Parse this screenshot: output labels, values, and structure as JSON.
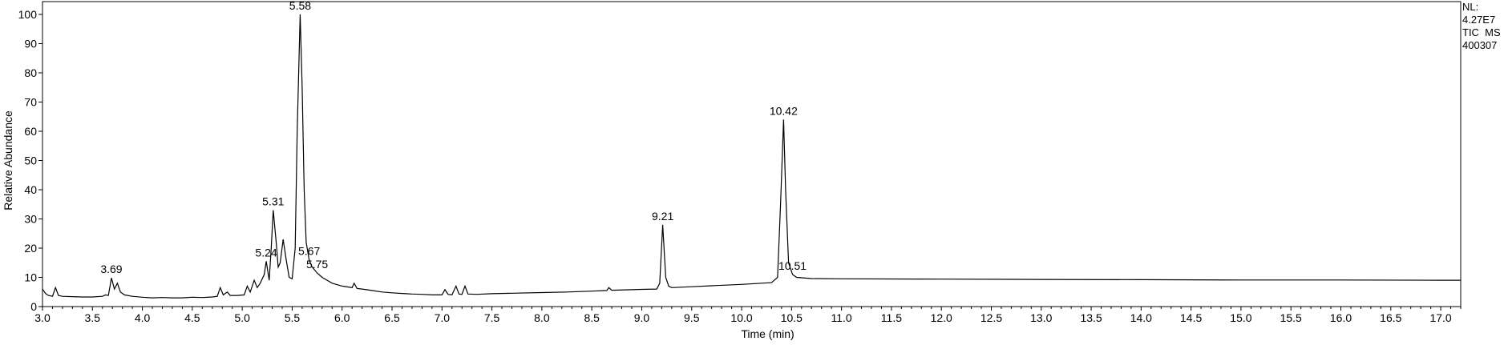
{
  "info": {
    "nl_label": "NL:",
    "nl_value": "4.27E7",
    "trace": "TIC  MS",
    "sample": "400307"
  },
  "chart_data": {
    "type": "line",
    "title": "",
    "xlabel": "Time (min)",
    "ylabel": "Relative Abundance",
    "xlim": [
      3.0,
      17.2
    ],
    "ylim": [
      0,
      100
    ],
    "xticks": [
      "3.0",
      "3.5",
      "4.0",
      "4.5",
      "5.0",
      "5.5",
      "6.0",
      "6.5",
      "7.0",
      "7.5",
      "8.0",
      "8.5",
      "9.0",
      "9.5",
      "10.0",
      "10.5",
      "11.0",
      "11.5",
      "12.0",
      "12.5",
      "13.0",
      "13.5",
      "14.0",
      "14.5",
      "15.0",
      "15.5",
      "16.0",
      "16.5",
      "17.0"
    ],
    "yticks": [
      "0",
      "10",
      "20",
      "30",
      "40",
      "50",
      "60",
      "70",
      "80",
      "90",
      "100"
    ],
    "series": [
      {
        "color": "#000000",
        "points": [
          [
            3.0,
            6.0
          ],
          [
            3.03,
            4.5
          ],
          [
            3.06,
            3.8
          ],
          [
            3.1,
            3.5
          ],
          [
            3.13,
            6.5
          ],
          [
            3.16,
            3.8
          ],
          [
            3.2,
            3.5
          ],
          [
            3.3,
            3.4
          ],
          [
            3.4,
            3.3
          ],
          [
            3.5,
            3.3
          ],
          [
            3.6,
            3.5
          ],
          [
            3.63,
            4.0
          ],
          [
            3.66,
            3.8
          ],
          [
            3.69,
            9.8
          ],
          [
            3.72,
            6.0
          ],
          [
            3.75,
            8.0
          ],
          [
            3.78,
            5.0
          ],
          [
            3.82,
            4.0
          ],
          [
            3.9,
            3.5
          ],
          [
            4.0,
            3.2
          ],
          [
            4.1,
            3.0
          ],
          [
            4.2,
            3.1
          ],
          [
            4.3,
            3.0
          ],
          [
            4.4,
            3.0
          ],
          [
            4.5,
            3.2
          ],
          [
            4.6,
            3.1
          ],
          [
            4.7,
            3.3
          ],
          [
            4.75,
            3.5
          ],
          [
            4.78,
            6.5
          ],
          [
            4.81,
            4.0
          ],
          [
            4.85,
            5.0
          ],
          [
            4.88,
            3.8
          ],
          [
            4.95,
            3.8
          ],
          [
            5.02,
            4.0
          ],
          [
            5.05,
            7.0
          ],
          [
            5.08,
            5.0
          ],
          [
            5.12,
            9.0
          ],
          [
            5.15,
            6.5
          ],
          [
            5.18,
            8.0
          ],
          [
            5.22,
            11.0
          ],
          [
            5.24,
            15.5
          ],
          [
            5.27,
            9.0
          ],
          [
            5.29,
            20.0
          ],
          [
            5.31,
            33.0
          ],
          [
            5.34,
            22.0
          ],
          [
            5.36,
            13.5
          ],
          [
            5.38,
            15.0
          ],
          [
            5.41,
            23.0
          ],
          [
            5.44,
            16.0
          ],
          [
            5.47,
            10.0
          ],
          [
            5.5,
            9.5
          ],
          [
            5.53,
            20.0
          ],
          [
            5.55,
            60.0
          ],
          [
            5.58,
            100.0
          ],
          [
            5.6,
            75.0
          ],
          [
            5.62,
            40.0
          ],
          [
            5.64,
            22.0
          ],
          [
            5.67,
            16.0
          ],
          [
            5.7,
            13.5
          ],
          [
            5.75,
            11.5
          ],
          [
            5.8,
            10.0
          ],
          [
            5.85,
            9.0
          ],
          [
            5.9,
            8.0
          ],
          [
            6.0,
            7.0
          ],
          [
            6.1,
            6.5
          ],
          [
            6.12,
            8.0
          ],
          [
            6.15,
            6.2
          ],
          [
            6.2,
            6.0
          ],
          [
            6.3,
            5.5
          ],
          [
            6.4,
            5.0
          ],
          [
            6.5,
            4.7
          ],
          [
            6.6,
            4.5
          ],
          [
            6.7,
            4.3
          ],
          [
            6.8,
            4.2
          ],
          [
            6.9,
            4.0
          ],
          [
            7.0,
            4.0
          ],
          [
            7.03,
            5.8
          ],
          [
            7.06,
            4.2
          ],
          [
            7.1,
            4.0
          ],
          [
            7.14,
            7.0
          ],
          [
            7.17,
            4.3
          ],
          [
            7.2,
            4.2
          ],
          [
            7.23,
            7.0
          ],
          [
            7.26,
            4.3
          ],
          [
            7.35,
            4.2
          ],
          [
            7.5,
            4.4
          ],
          [
            7.75,
            4.6
          ],
          [
            8.0,
            4.8
          ],
          [
            8.25,
            5.0
          ],
          [
            8.5,
            5.3
          ],
          [
            8.65,
            5.5
          ],
          [
            8.67,
            6.5
          ],
          [
            8.7,
            5.6
          ],
          [
            9.0,
            5.9
          ],
          [
            9.15,
            6.0
          ],
          [
            9.18,
            8.0
          ],
          [
            9.21,
            28.0
          ],
          [
            9.24,
            10.0
          ],
          [
            9.27,
            7.0
          ],
          [
            9.3,
            6.5
          ],
          [
            9.5,
            6.8
          ],
          [
            9.75,
            7.2
          ],
          [
            10.0,
            7.6
          ],
          [
            10.2,
            8.0
          ],
          [
            10.3,
            8.2
          ],
          [
            10.36,
            10.0
          ],
          [
            10.39,
            35.0
          ],
          [
            10.42,
            64.0
          ],
          [
            10.44,
            40.0
          ],
          [
            10.47,
            15.0
          ],
          [
            10.51,
            11.0
          ],
          [
            10.55,
            10.0
          ],
          [
            10.7,
            9.6
          ],
          [
            11.0,
            9.5
          ],
          [
            12.0,
            9.4
          ],
          [
            13.0,
            9.3
          ],
          [
            14.0,
            9.2
          ],
          [
            15.0,
            9.1
          ],
          [
            16.0,
            9.1
          ],
          [
            17.0,
            9.0
          ],
          [
            17.2,
            9.0
          ]
        ]
      }
    ],
    "peak_labels": [
      {
        "text": "3.69",
        "x": 3.69,
        "y": 9.8
      },
      {
        "text": "5.24",
        "x": 5.24,
        "y": 15.5
      },
      {
        "text": "5.31",
        "x": 5.31,
        "y": 33.0
      },
      {
        "text": "5.58",
        "x": 5.58,
        "y": 100.0
      },
      {
        "text": "5.67",
        "x": 5.67,
        "y": 16.0
      },
      {
        "text": "5.75",
        "x": 5.75,
        "y": 11.5
      },
      {
        "text": "9.21",
        "x": 9.21,
        "y": 28.0
      },
      {
        "text": "10.42",
        "x": 10.42,
        "y": 64.0
      },
      {
        "text": "10.51",
        "x": 10.51,
        "y": 11.0
      }
    ]
  }
}
